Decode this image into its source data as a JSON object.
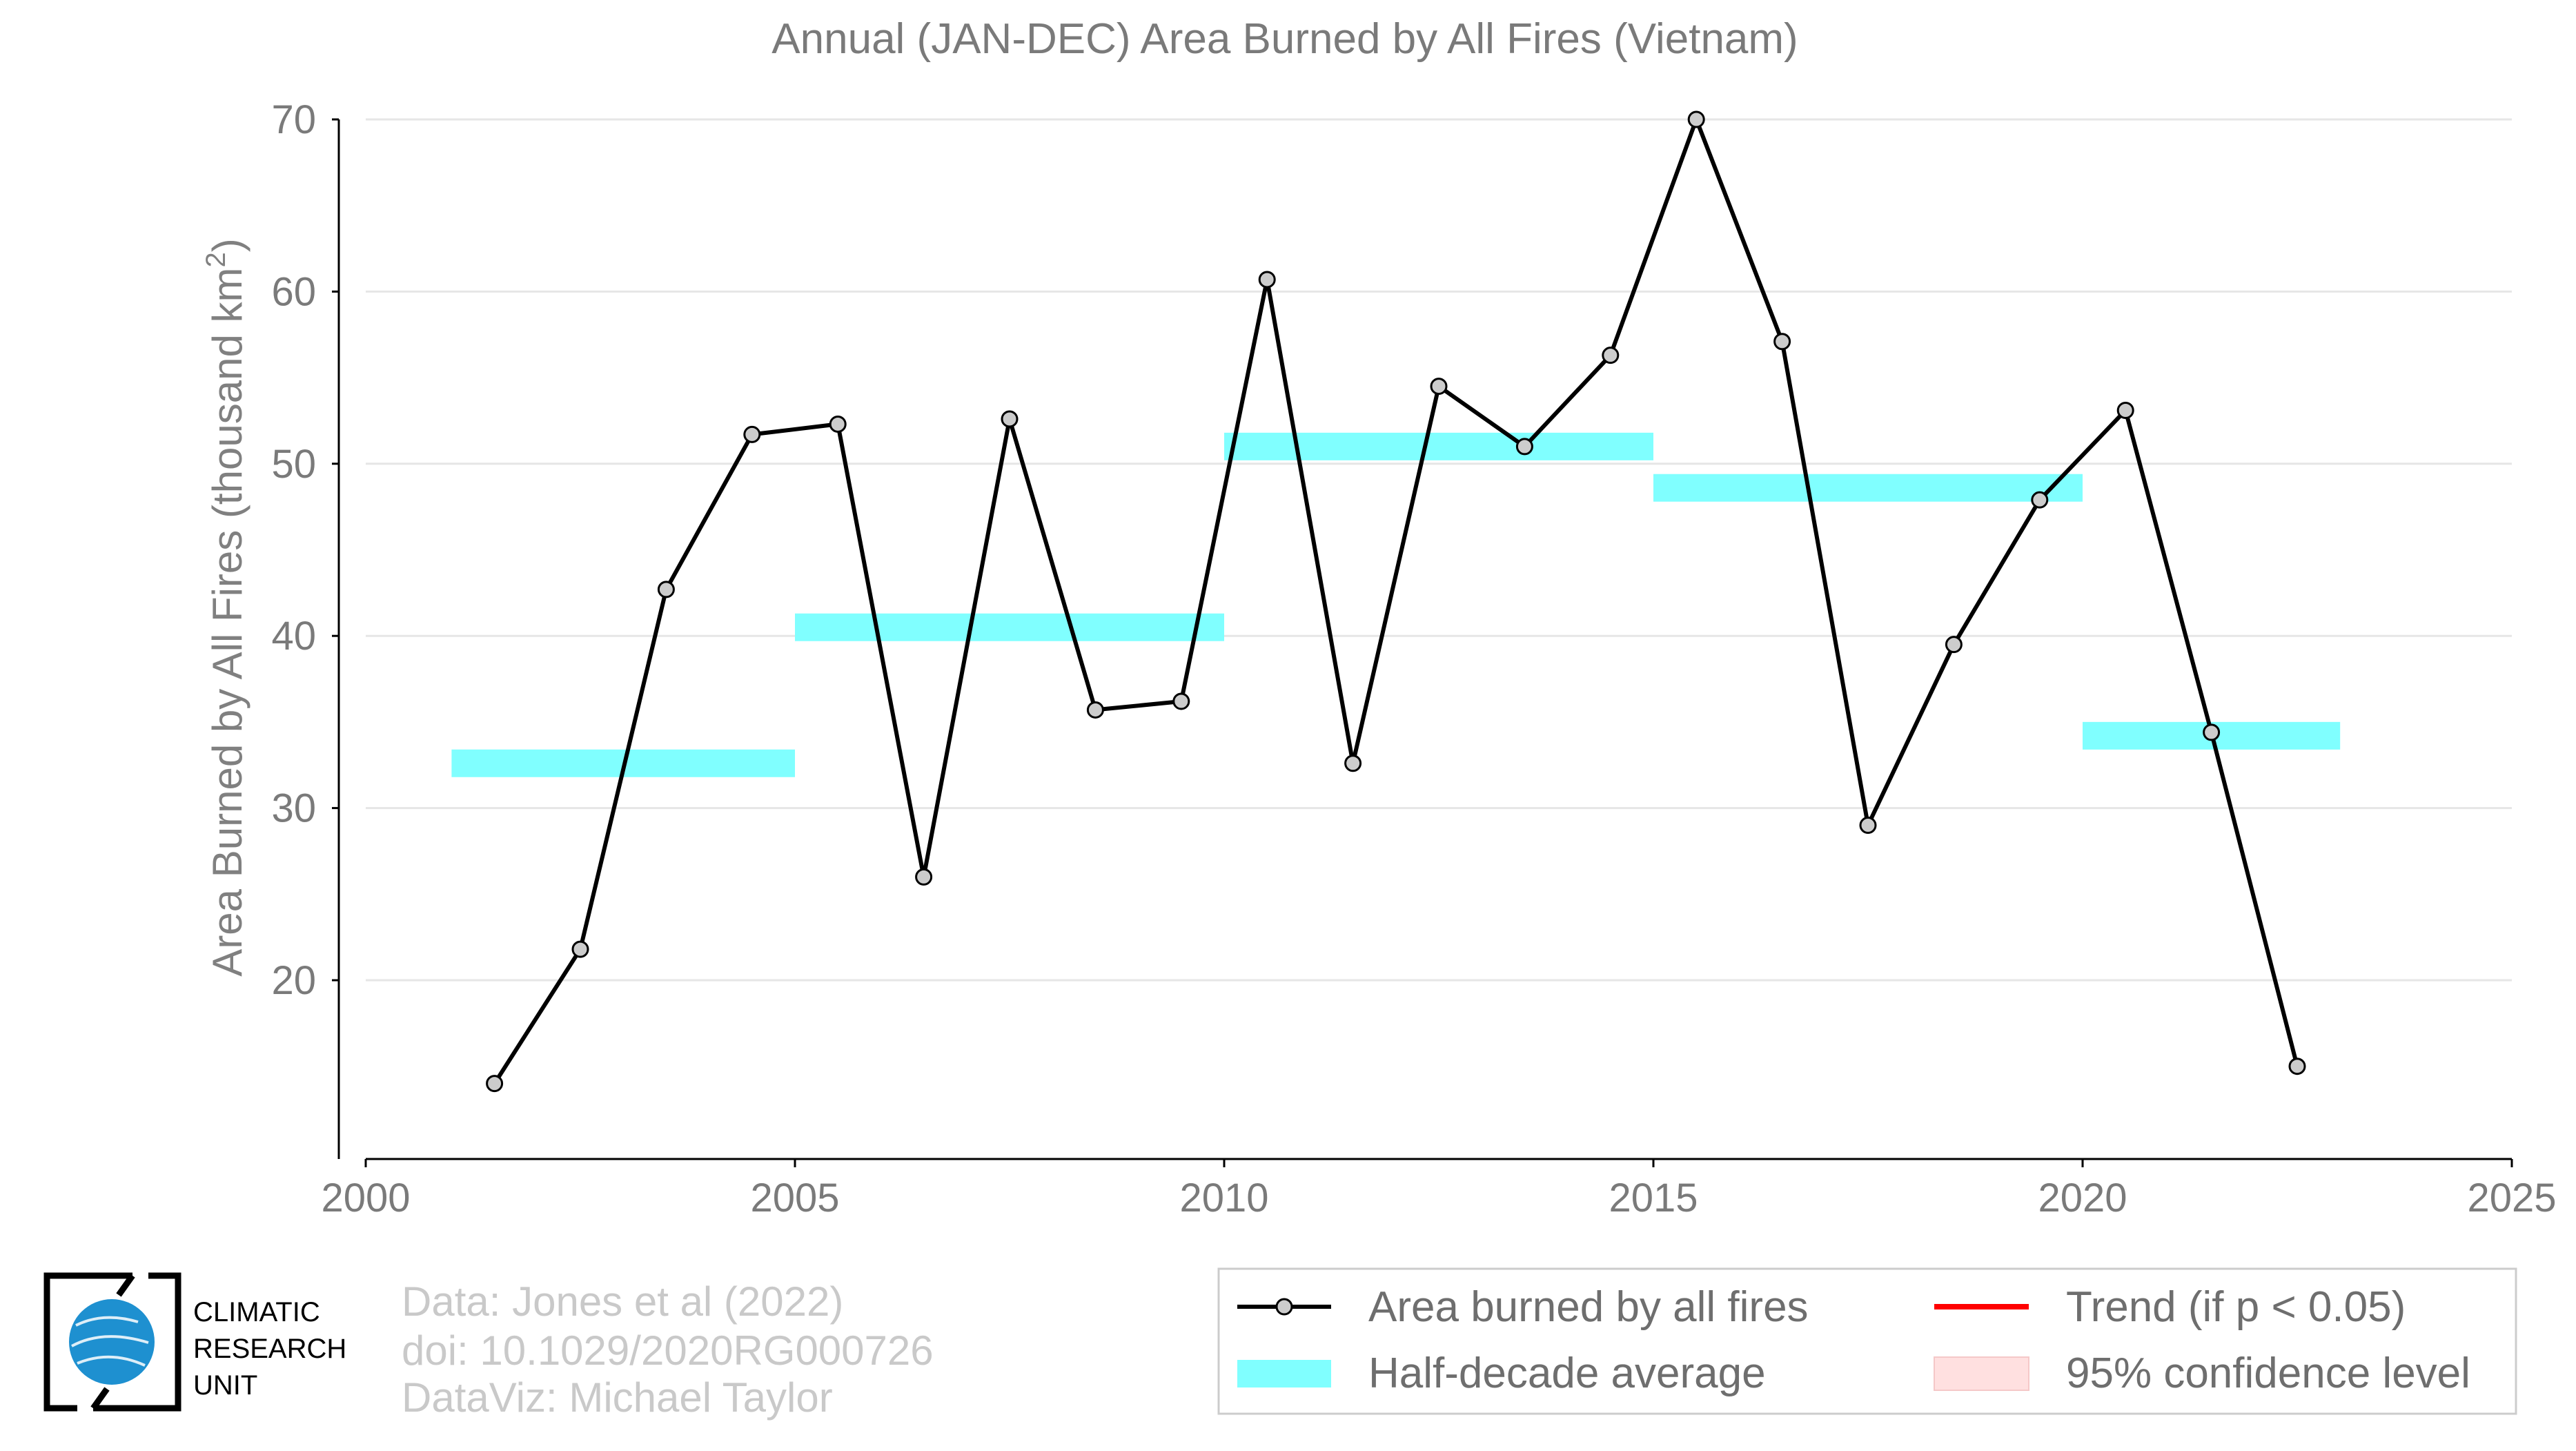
{
  "chart_data": {
    "type": "line",
    "title": "Annual (JAN-DEC) Area Burned by All Fires (Vietnam)",
    "ylabel": "Area Burned by All Fires (thousand km",
    "ylabel_sup": "2",
    "ylabel_close": ")",
    "xlabel": "",
    "xlim": [
      2000,
      2025
    ],
    "ylim": [
      9.5,
      70
    ],
    "x_ticks": [
      2000,
      2005,
      2010,
      2015,
      2020,
      2025
    ],
    "y_ticks": [
      20,
      30,
      40,
      50,
      60,
      70
    ],
    "grid": "horizontal",
    "series": [
      {
        "name": "Area burned by all fires",
        "color": "#000000",
        "marker_fill": "#cccccc",
        "x": [
          2001.5,
          2002.5,
          2003.5,
          2004.5,
          2005.5,
          2006.5,
          2007.5,
          2008.5,
          2009.5,
          2010.5,
          2011.5,
          2012.5,
          2013.5,
          2014.5,
          2015.5,
          2016.5,
          2017.5,
          2018.5,
          2019.5,
          2020.5,
          2021.5,
          2022.5
        ],
        "y": [
          14.0,
          21.8,
          42.7,
          51.7,
          52.3,
          26.0,
          52.6,
          35.7,
          36.2,
          60.7,
          32.6,
          54.5,
          51.0,
          56.3,
          70.0,
          57.1,
          29.0,
          39.5,
          47.9,
          53.1,
          34.4,
          15.0
        ]
      }
    ],
    "half_decade_average": {
      "name": "Half-decade average",
      "color": "#80ffff",
      "segments": [
        {
          "x0": 2001,
          "x1": 2005,
          "y": 32.6
        },
        {
          "x0": 2005,
          "x1": 2010,
          "y": 40.5
        },
        {
          "x0": 2010,
          "x1": 2015,
          "y": 51.0
        },
        {
          "x0": 2015,
          "x1": 2020,
          "y": 48.6
        },
        {
          "x0": 2020,
          "x1": 2023,
          "y": 34.2
        }
      ]
    },
    "legend": {
      "placement": "bottom-right",
      "entries": [
        {
          "label": "Area burned by all fires",
          "kind": "line-marker",
          "color": "#000000"
        },
        {
          "label": "Trend (if p < 0.05)",
          "kind": "line",
          "color": "#ff0000"
        },
        {
          "label": "Half-decade average",
          "kind": "band",
          "color": "#80ffff"
        },
        {
          "label": "95% confidence level",
          "kind": "patch",
          "color": "#ffe0e0"
        }
      ]
    }
  },
  "credits": {
    "line1": "Data: Jones et al (2022)",
    "line2": "doi: 10.1029/2020RG000726",
    "line3": "DataViz: Michael Taylor"
  },
  "logo": {
    "line1": "CLIMATIC",
    "line2": "RESEARCH",
    "line3": "UNIT",
    "globe_color": "#1e90d0"
  }
}
